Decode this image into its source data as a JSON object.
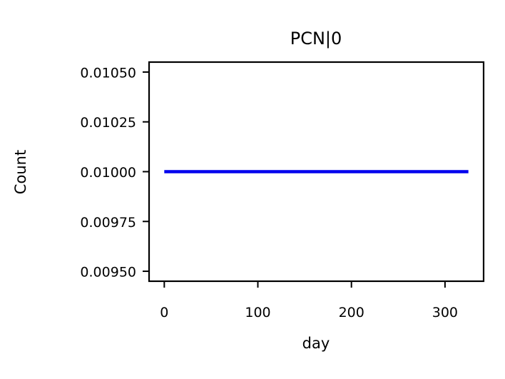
{
  "chart_data": {
    "type": "line",
    "title": "PCN|0",
    "xlabel": "day",
    "ylabel": "Count",
    "xlim": [
      -16.25,
      341.25
    ],
    "ylim": [
      0.00945,
      0.01055
    ],
    "xticks": [
      0,
      100,
      200,
      300
    ],
    "xtick_labels": [
      "0",
      "100",
      "200",
      "300"
    ],
    "yticks": [
      0.0095,
      0.00975,
      0.01,
      0.01025,
      0.0105
    ],
    "ytick_labels": [
      "0.00950",
      "0.00975",
      "0.01000",
      "0.01025",
      "0.01050"
    ],
    "grid": false,
    "series": [
      {
        "color": "#0000ee",
        "x": [
          0,
          325
        ],
        "y": [
          0.01,
          0.01
        ]
      }
    ]
  }
}
